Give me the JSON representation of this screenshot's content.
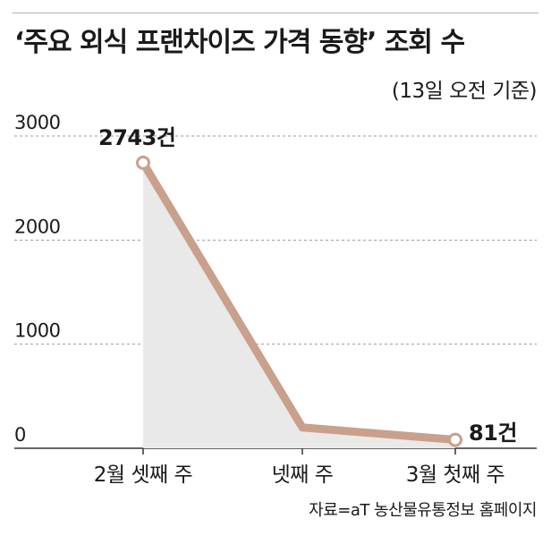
{
  "title": "‘주요 외식 프랜차이즈 가격 동향’ 조회 수",
  "subtitle": "(13일 오전 기준)",
  "source": "자료=aT 농산물유통정보 홈페이지",
  "colors": {
    "line": "#c9a08c",
    "area": "#e9e9e9",
    "grid": "#9a9a9a"
  },
  "chart_data": {
    "type": "line",
    "title": "‘주요 외식 프랜차이즈 가격 동향’ 조회 수",
    "subtitle": "(13일 오전 기준)",
    "categories": [
      "2월 셋째 주",
      "넷째 주",
      "3월 첫째 주"
    ],
    "values": [
      2743,
      200,
      81
    ],
    "data_labels": [
      "2743건",
      "",
      "81건"
    ],
    "y_ticks": [
      "3000",
      "2000",
      "1000",
      "0"
    ],
    "ylim": [
      0,
      3000
    ],
    "grid": true,
    "xlabel": "",
    "ylabel": ""
  }
}
